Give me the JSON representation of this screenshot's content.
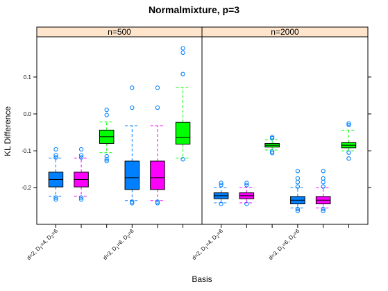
{
  "chart_data": {
    "type": "boxplot",
    "title": "Normalmixture, p=3",
    "xlabel": "Basis",
    "ylabel": "KL Difference",
    "ylim": [
      -0.3,
      0.2
    ],
    "yticks": [
      {
        "value": 0.1,
        "label": "0.1"
      },
      {
        "value": 0.0,
        "label": "0.0"
      },
      {
        "value": -0.1,
        "label": "-0.1"
      },
      {
        "value": -0.2,
        "label": "-0.2"
      }
    ],
    "colors": {
      "strip": "#ffe5cc",
      "blue": "#0080ff",
      "magenta": "#ff00ff",
      "green": "#00ff00",
      "outlier": "#0080ff"
    },
    "panels": [
      {
        "strip": "n=500",
        "xticks": [
          {
            "label": "d=2, D",
            "s1": "1",
            "m1": "=4, D",
            "s2": "2",
            "m2": "=6"
          },
          {
            "label": "d=3, D",
            "s1": "1",
            "m1": "=6, D",
            "s2": "2",
            "m2": "=6"
          }
        ],
        "boxes": [
          {
            "color": "blue",
            "whisker_color": "blue",
            "q1": -0.198,
            "median": -0.178,
            "q3": -0.158,
            "lower": -0.223,
            "upper": -0.12,
            "outliers": [
              -0.096,
              -0.112,
              -0.118,
              -0.227,
              -0.232
            ]
          },
          {
            "color": "magenta",
            "whisker_color": "magenta",
            "q1": -0.198,
            "median": -0.178,
            "q3": -0.158,
            "lower": -0.223,
            "upper": -0.12,
            "outliers": [
              -0.096,
              -0.112,
              -0.118,
              -0.227,
              -0.232
            ]
          },
          {
            "color": "green",
            "whisker_color": "green",
            "q1": -0.08,
            "median": -0.062,
            "q3": -0.044,
            "lower": -0.105,
            "upper": -0.022,
            "outliers": [
              0.011,
              -0.003,
              -0.115,
              -0.123,
              -0.128
            ]
          },
          {
            "color": "blue",
            "whisker_color": "blue",
            "q1": -0.205,
            "median": -0.173,
            "q3": -0.128,
            "lower": -0.235,
            "upper": -0.032,
            "outliers": [
              0.071,
              0.017,
              -0.238,
              -0.242
            ]
          },
          {
            "color": "magenta",
            "whisker_color": "magenta",
            "q1": -0.205,
            "median": -0.173,
            "q3": -0.128,
            "lower": -0.235,
            "upper": -0.032,
            "outliers": [
              0.071,
              0.017,
              -0.238,
              -0.242
            ]
          },
          {
            "color": "green",
            "whisker_color": "green",
            "q1": -0.082,
            "median": -0.063,
            "q3": -0.023,
            "lower": -0.12,
            "upper": 0.072,
            "outliers": [
              0.178,
              0.166,
              0.108,
              -0.123
            ]
          }
        ]
      },
      {
        "strip": "n=2000",
        "xticks": [
          {
            "label": "d=2, D",
            "s1": "1",
            "m1": "=4, D",
            "s2": "2",
            "m2": "=6"
          },
          {
            "label": "d=3, D",
            "s1": "1",
            "m1": "=6, D",
            "s2": "2",
            "m2": "=6"
          }
        ],
        "boxes": [
          {
            "color": "blue",
            "whisker_color": "blue",
            "q1": -0.23,
            "median": -0.222,
            "q3": -0.214,
            "lower": -0.241,
            "upper": -0.2,
            "outliers": [
              -0.187,
              -0.193,
              -0.244
            ]
          },
          {
            "color": "magenta",
            "whisker_color": "magenta",
            "q1": -0.23,
            "median": -0.222,
            "q3": -0.214,
            "lower": -0.241,
            "upper": -0.2,
            "outliers": [
              -0.187,
              -0.193,
              -0.244
            ]
          },
          {
            "color": "green",
            "whisker_color": "green",
            "q1": -0.09,
            "median": -0.085,
            "q3": -0.08,
            "lower": -0.098,
            "upper": -0.07,
            "outliers": [
              -0.063,
              -0.066,
              -0.102,
              -0.106
            ]
          },
          {
            "color": "blue",
            "whisker_color": "blue",
            "q1": -0.244,
            "median": -0.234,
            "q3": -0.224,
            "lower": -0.255,
            "upper": -0.2,
            "outliers": [
              -0.155,
              -0.175,
              -0.185,
              -0.197,
              -0.258,
              -0.263
            ]
          },
          {
            "color": "magenta",
            "whisker_color": "magenta",
            "q1": -0.244,
            "median": -0.234,
            "q3": -0.224,
            "lower": -0.255,
            "upper": -0.2,
            "outliers": [
              -0.155,
              -0.175,
              -0.185,
              -0.197,
              -0.258,
              -0.263
            ]
          },
          {
            "color": "green",
            "whisker_color": "green",
            "q1": -0.092,
            "median": -0.085,
            "q3": -0.078,
            "lower": -0.1,
            "upper": -0.044,
            "outliers": [
              -0.026,
              -0.03,
              -0.105,
              -0.121
            ]
          }
        ]
      }
    ]
  }
}
